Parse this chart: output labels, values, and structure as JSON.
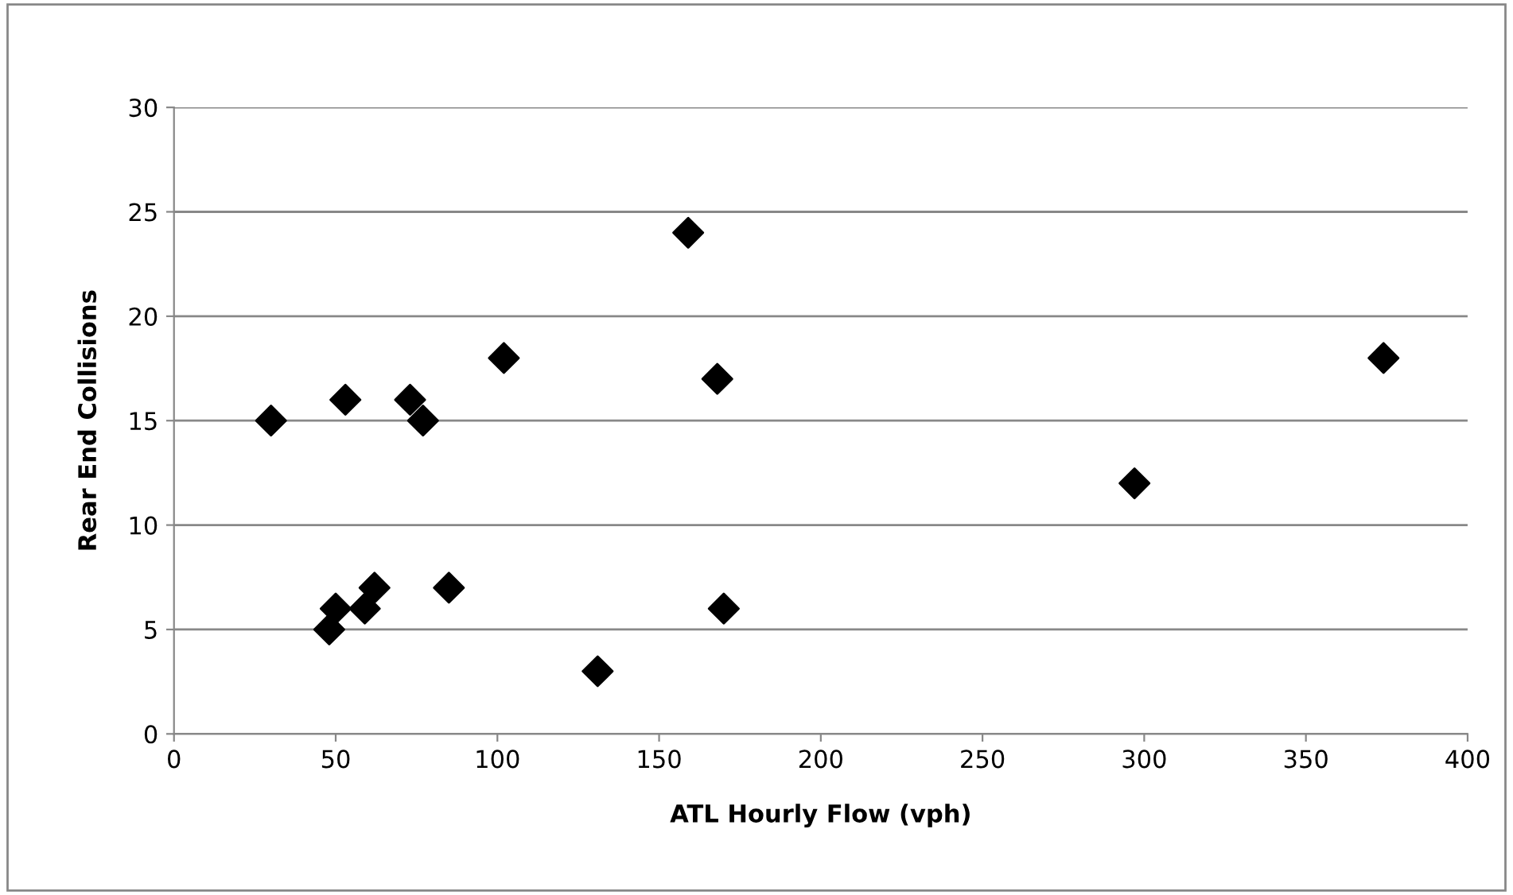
{
  "chart_data": {
    "type": "scatter",
    "xlabel": "ATL Hourly Flow (vph)",
    "ylabel": "Rear End Collisions",
    "x": [
      30,
      53,
      48,
      50,
      59,
      62,
      73,
      77,
      85,
      102,
      131,
      159,
      168,
      170,
      297,
      374
    ],
    "values": [
      15,
      16,
      5,
      6,
      6,
      7,
      16,
      15,
      7,
      18,
      3,
      24,
      17,
      6,
      12,
      18
    ],
    "color": "#000000",
    "marker": "diamond",
    "grid": "y",
    "xlim": [
      0,
      400
    ],
    "xticks": [
      0,
      50,
      100,
      150,
      200,
      250,
      300,
      350,
      400
    ],
    "ylim": [
      0,
      30
    ],
    "yticks": [
      0,
      5,
      10,
      15,
      20,
      25,
      30
    ]
  }
}
